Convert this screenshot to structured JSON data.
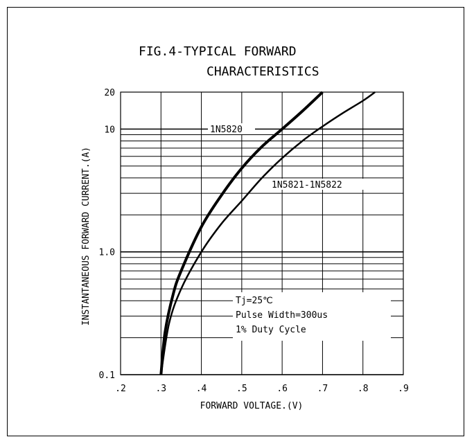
{
  "chart_data": {
    "type": "line",
    "title_line1": "FIG.4-TYPICAL FORWARD",
    "title_line2": "CHARACTERISTICS",
    "xlabel": "FORWARD VOLTAGE.(V)",
    "ylabel": "INSTANTANEOUS FORWARD CURRENT.(A)",
    "xlim": [
      0.2,
      0.9
    ],
    "ylim": [
      0.1,
      20
    ],
    "y_scale": "log",
    "grid": true,
    "x_ticks": [
      {
        "value": 0.2,
        "label": ".2"
      },
      {
        "value": 0.3,
        "label": ".3"
      },
      {
        "value": 0.4,
        "label": ".4"
      },
      {
        "value": 0.5,
        "label": ".5"
      },
      {
        "value": 0.6,
        "label": ".6"
      },
      {
        "value": 0.7,
        "label": ".7"
      },
      {
        "value": 0.8,
        "label": ".8"
      },
      {
        "value": 0.9,
        "label": ".9"
      }
    ],
    "y_ticks": [
      {
        "value": 0.1,
        "label": "0.1"
      },
      {
        "value": 1.0,
        "label": "1.0"
      },
      {
        "value": 10,
        "label": "10"
      },
      {
        "value": 20,
        "label": "20"
      }
    ],
    "series": [
      {
        "name": "1N5820",
        "x": [
          0.3,
          0.31,
          0.33,
          0.35,
          0.4,
          0.45,
          0.5,
          0.55,
          0.6,
          0.65,
          0.7
        ],
        "y": [
          0.1,
          0.22,
          0.45,
          0.7,
          1.6,
          2.9,
          4.8,
          7.2,
          10.0,
          14.0,
          20.0
        ]
      },
      {
        "name": "1N5821-1N5822",
        "x": [
          0.3,
          0.32,
          0.35,
          0.4,
          0.45,
          0.5,
          0.55,
          0.6,
          0.65,
          0.7,
          0.75,
          0.8,
          0.83
        ],
        "y": [
          0.1,
          0.26,
          0.5,
          1.0,
          1.7,
          2.6,
          4.0,
          5.8,
          8.0,
          10.5,
          13.5,
          17.0,
          20.0
        ]
      }
    ],
    "annotations": [
      "Tj=25℃",
      "Pulse Width=300us",
      "1% Duty Cycle"
    ],
    "colors": {
      "line": "#000000",
      "grid": "#000000",
      "background": "#ffffff"
    }
  }
}
